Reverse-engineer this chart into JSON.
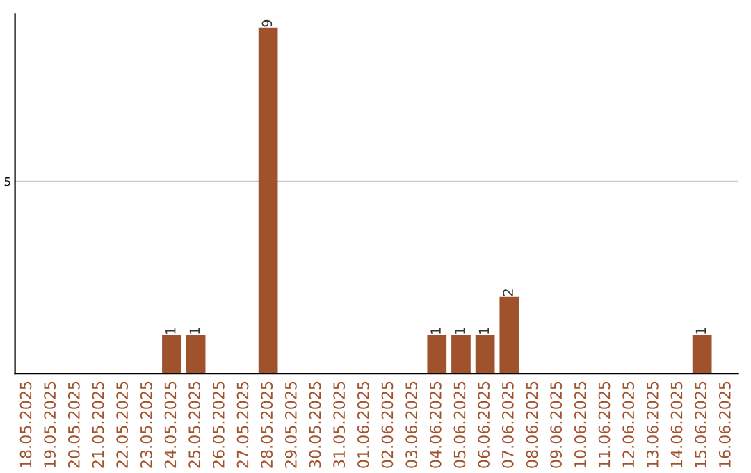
{
  "chart_data": {
    "type": "bar",
    "categories": [
      "18.05.2025",
      "19.05.2025",
      "20.05.2025",
      "21.05.2025",
      "22.05.2025",
      "23.05.2025",
      "24.05.2025",
      "25.05.2025",
      "26.05.2025",
      "27.05.2025",
      "28.05.2025",
      "29.05.2025",
      "30.05.2025",
      "31.05.2025",
      "01.06.2025",
      "02.06.2025",
      "03.06.2025",
      "04.06.2025",
      "05.06.2025",
      "06.06.2025",
      "07.06.2025",
      "08.06.2025",
      "09.06.2025",
      "10.06.2025",
      "11.06.2025",
      "12.06.2025",
      "13.06.2025",
      "14.06.2025",
      "15.06.2025",
      "16.06.2025"
    ],
    "values": [
      0,
      0,
      0,
      0,
      0,
      0,
      1,
      1,
      0,
      0,
      9,
      0,
      0,
      0,
      0,
      0,
      0,
      1,
      1,
      1,
      2,
      0,
      0,
      0,
      0,
      0,
      0,
      0,
      1,
      0
    ],
    "value_labels": [
      null,
      null,
      null,
      null,
      null,
      null,
      "1",
      "1",
      null,
      null,
      "9",
      null,
      null,
      null,
      null,
      null,
      null,
      "1",
      "1",
      "1",
      "2",
      null,
      null,
      null,
      null,
      null,
      null,
      null,
      "1",
      null
    ],
    "color": "#a0522d",
    "ylim": [
      0,
      9.35
    ],
    "yticks": [
      5
    ],
    "grid": "y",
    "legend": false
  }
}
